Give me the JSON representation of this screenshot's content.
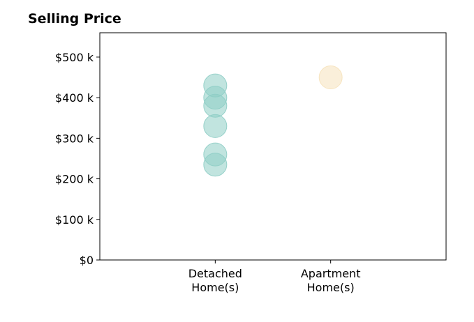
{
  "chart_data": {
    "type": "scatter",
    "title": "Selling Price",
    "xlabel": "",
    "ylabel": "",
    "categories": [
      "Detached\nHome(s)",
      "Apartment\nHome(s)"
    ],
    "series": [
      {
        "category_index": 0,
        "color": "#8ecdc5",
        "values": [
          430000,
          400000,
          380000,
          330000,
          260000,
          235000
        ]
      },
      {
        "category_index": 1,
        "color": "#f6e2bb",
        "values": [
          450000
        ]
      }
    ],
    "ylim": [
      0,
      560000
    ],
    "xlim": [
      -1,
      2
    ],
    "yticks": [
      {
        "value": 0,
        "label": "$0"
      },
      {
        "value": 100000,
        "label": "$100 k"
      },
      {
        "value": 200000,
        "label": "$200 k"
      },
      {
        "value": 300000,
        "label": "$300 k"
      },
      {
        "value": 400000,
        "label": "$400 k"
      },
      {
        "value": 500000,
        "label": "$500 k"
      }
    ],
    "grid": false,
    "legend": "none"
  }
}
